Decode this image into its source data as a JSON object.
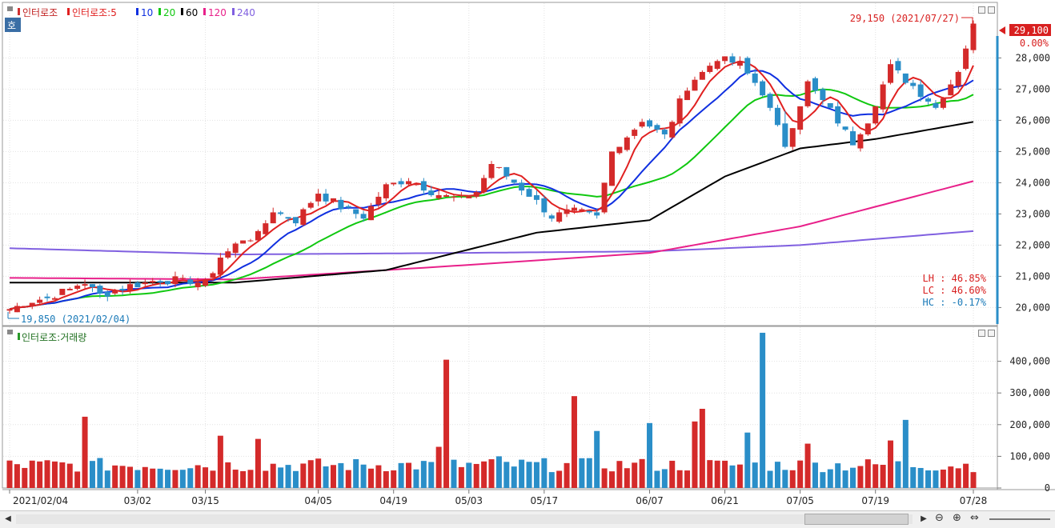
{
  "chart_data": [
    {
      "type": "candlestick",
      "name": "인터로조",
      "legend": [
        {
          "label": "인터로조",
          "color": "#d03030"
        },
        {
          "label": "인터로조:5",
          "color": "#e02020"
        },
        {
          "label": "10",
          "color": "#1030e0"
        },
        {
          "label": "20",
          "color": "#10c810"
        },
        {
          "label": "60",
          "color": "#000000"
        },
        {
          "label": "120",
          "color": "#e8208a"
        },
        {
          "label": "240",
          "color": "#8060e0"
        }
      ],
      "ylim": [
        19600,
        29600
      ],
      "y_ticks": [
        "20,000",
        "21,000",
        "22,000",
        "23,000",
        "24,000",
        "25,000",
        "26,000",
        "27,000",
        "28,000"
      ],
      "y_tick_values": [
        20000,
        21000,
        22000,
        23000,
        24000,
        25000,
        26000,
        27000,
        28000
      ],
      "current_price_label": "29,100",
      "change_label": "0.00%",
      "high_annotation": "29,150 (2021/07/27)",
      "low_annotation": "19,850 (2021/02/04)",
      "stats": [
        "LH : 46.85%",
        "LC : 46.60%",
        "HC : -0.17%"
      ],
      "close_anchors": [
        [
          0,
          19950
        ],
        [
          2,
          20150
        ],
        [
          5,
          20300
        ],
        [
          10,
          20800
        ],
        [
          12,
          20400
        ],
        [
          16,
          20700
        ],
        [
          20,
          20900
        ],
        [
          26,
          20800
        ],
        [
          28,
          21600
        ],
        [
          31,
          22200
        ],
        [
          33,
          22300
        ],
        [
          35,
          23100
        ],
        [
          38,
          22800
        ],
        [
          41,
          23700
        ],
        [
          44,
          23200
        ],
        [
          47,
          22900
        ],
        [
          50,
          23900
        ],
        [
          53,
          24100
        ],
        [
          57,
          23600
        ],
        [
          60,
          23500
        ],
        [
          62,
          23700
        ],
        [
          64,
          24600
        ],
        [
          67,
          24000
        ],
        [
          69,
          23600
        ],
        [
          72,
          22900
        ],
        [
          75,
          23100
        ],
        [
          78,
          22900
        ],
        [
          80,
          25000
        ],
        [
          84,
          26000
        ],
        [
          87,
          25500
        ],
        [
          90,
          27100
        ],
        [
          94,
          28000
        ],
        [
          97,
          27800
        ],
        [
          100,
          26900
        ],
        [
          103,
          25200
        ],
        [
          106,
          27200
        ],
        [
          109,
          26300
        ],
        [
          112,
          25300
        ],
        [
          114,
          26000
        ],
        [
          117,
          27700
        ],
        [
          120,
          27100
        ],
        [
          123,
          26400
        ],
        [
          126,
          27600
        ],
        [
          128,
          29100
        ]
      ],
      "ma": {
        "ma240": [
          [
            0,
            21900
          ],
          [
            30,
            21700
          ],
          [
            60,
            21750
          ],
          [
            85,
            21800
          ],
          [
            105,
            22000
          ],
          [
            128,
            22450
          ]
        ],
        "ma120": [
          [
            0,
            20950
          ],
          [
            30,
            20900
          ],
          [
            60,
            21350
          ],
          [
            85,
            21750
          ],
          [
            105,
            22600
          ],
          [
            128,
            24050
          ]
        ],
        "ma60": [
          [
            0,
            20800
          ],
          [
            30,
            20800
          ],
          [
            50,
            21200
          ],
          [
            70,
            22400
          ],
          [
            85,
            22800
          ],
          [
            95,
            24200
          ],
          [
            105,
            25100
          ],
          [
            115,
            25400
          ],
          [
            128,
            25950
          ]
        ]
      }
    },
    {
      "type": "bar",
      "name": "인터로조:거래량",
      "legend_label": "인터로조:거래량",
      "ylim": [
        0,
        500000
      ],
      "y_ticks": [
        "0",
        "100,000",
        "200,000",
        "300,000",
        "400,000"
      ],
      "y_tick_values": [
        0,
        100000,
        200000,
        300000,
        400000
      ],
      "x_tick_labels": [
        "2021/02/04",
        "03/02",
        "03/15",
        "04/05",
        "04/19",
        "05/03",
        "05/17",
        "06/07",
        "06/21",
        "07/05",
        "07/19",
        "07/28"
      ],
      "x_tick_index": [
        0,
        17,
        26,
        41,
        51,
        61,
        71,
        85,
        95,
        105,
        115,
        128
      ],
      "volume_spikes": [
        [
          10,
          225000
        ],
        [
          28,
          165000
        ],
        [
          33,
          155000
        ],
        [
          57,
          130000
        ],
        [
          58,
          405000
        ],
        [
          65,
          100000
        ],
        [
          75,
          290000
        ],
        [
          78,
          180000
        ],
        [
          85,
          205000
        ],
        [
          91,
          210000
        ],
        [
          92,
          250000
        ],
        [
          98,
          175000
        ],
        [
          100,
          490000
        ],
        [
          106,
          140000
        ],
        [
          117,
          150000
        ],
        [
          119,
          215000
        ]
      ],
      "volume_base": 50000,
      "colors": {
        "up": "#d42a2a",
        "down": "#2a8ec8"
      }
    }
  ]
}
